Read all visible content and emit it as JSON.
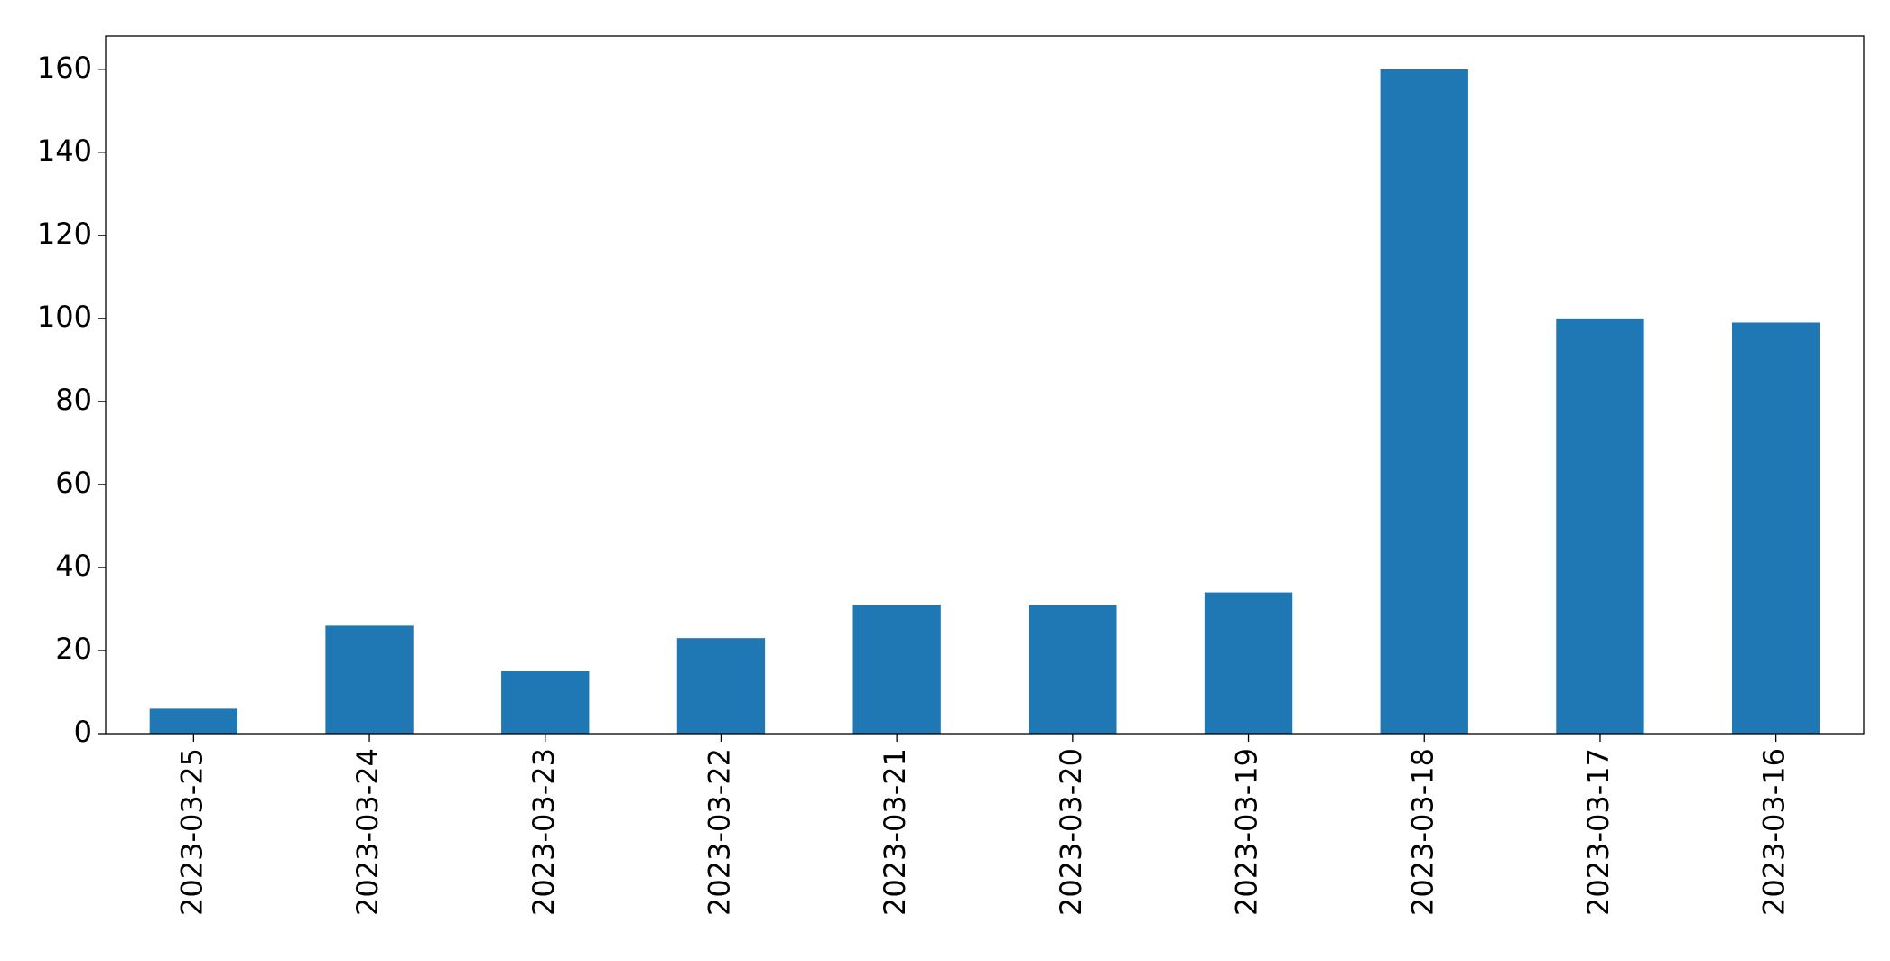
{
  "chart_data": {
    "type": "bar",
    "categories": [
      "2023-03-25",
      "2023-03-24",
      "2023-03-23",
      "2023-03-22",
      "2023-03-21",
      "2023-03-20",
      "2023-03-19",
      "2023-03-18",
      "2023-03-17",
      "2023-03-16"
    ],
    "values": [
      6,
      26,
      15,
      23,
      31,
      31,
      34,
      160,
      100,
      99
    ],
    "color": "#1f77b4",
    "ylim": [
      0,
      168
    ],
    "yticks": [
      0,
      20,
      40,
      60,
      80,
      100,
      120,
      140,
      160
    ],
    "grid": false
  }
}
